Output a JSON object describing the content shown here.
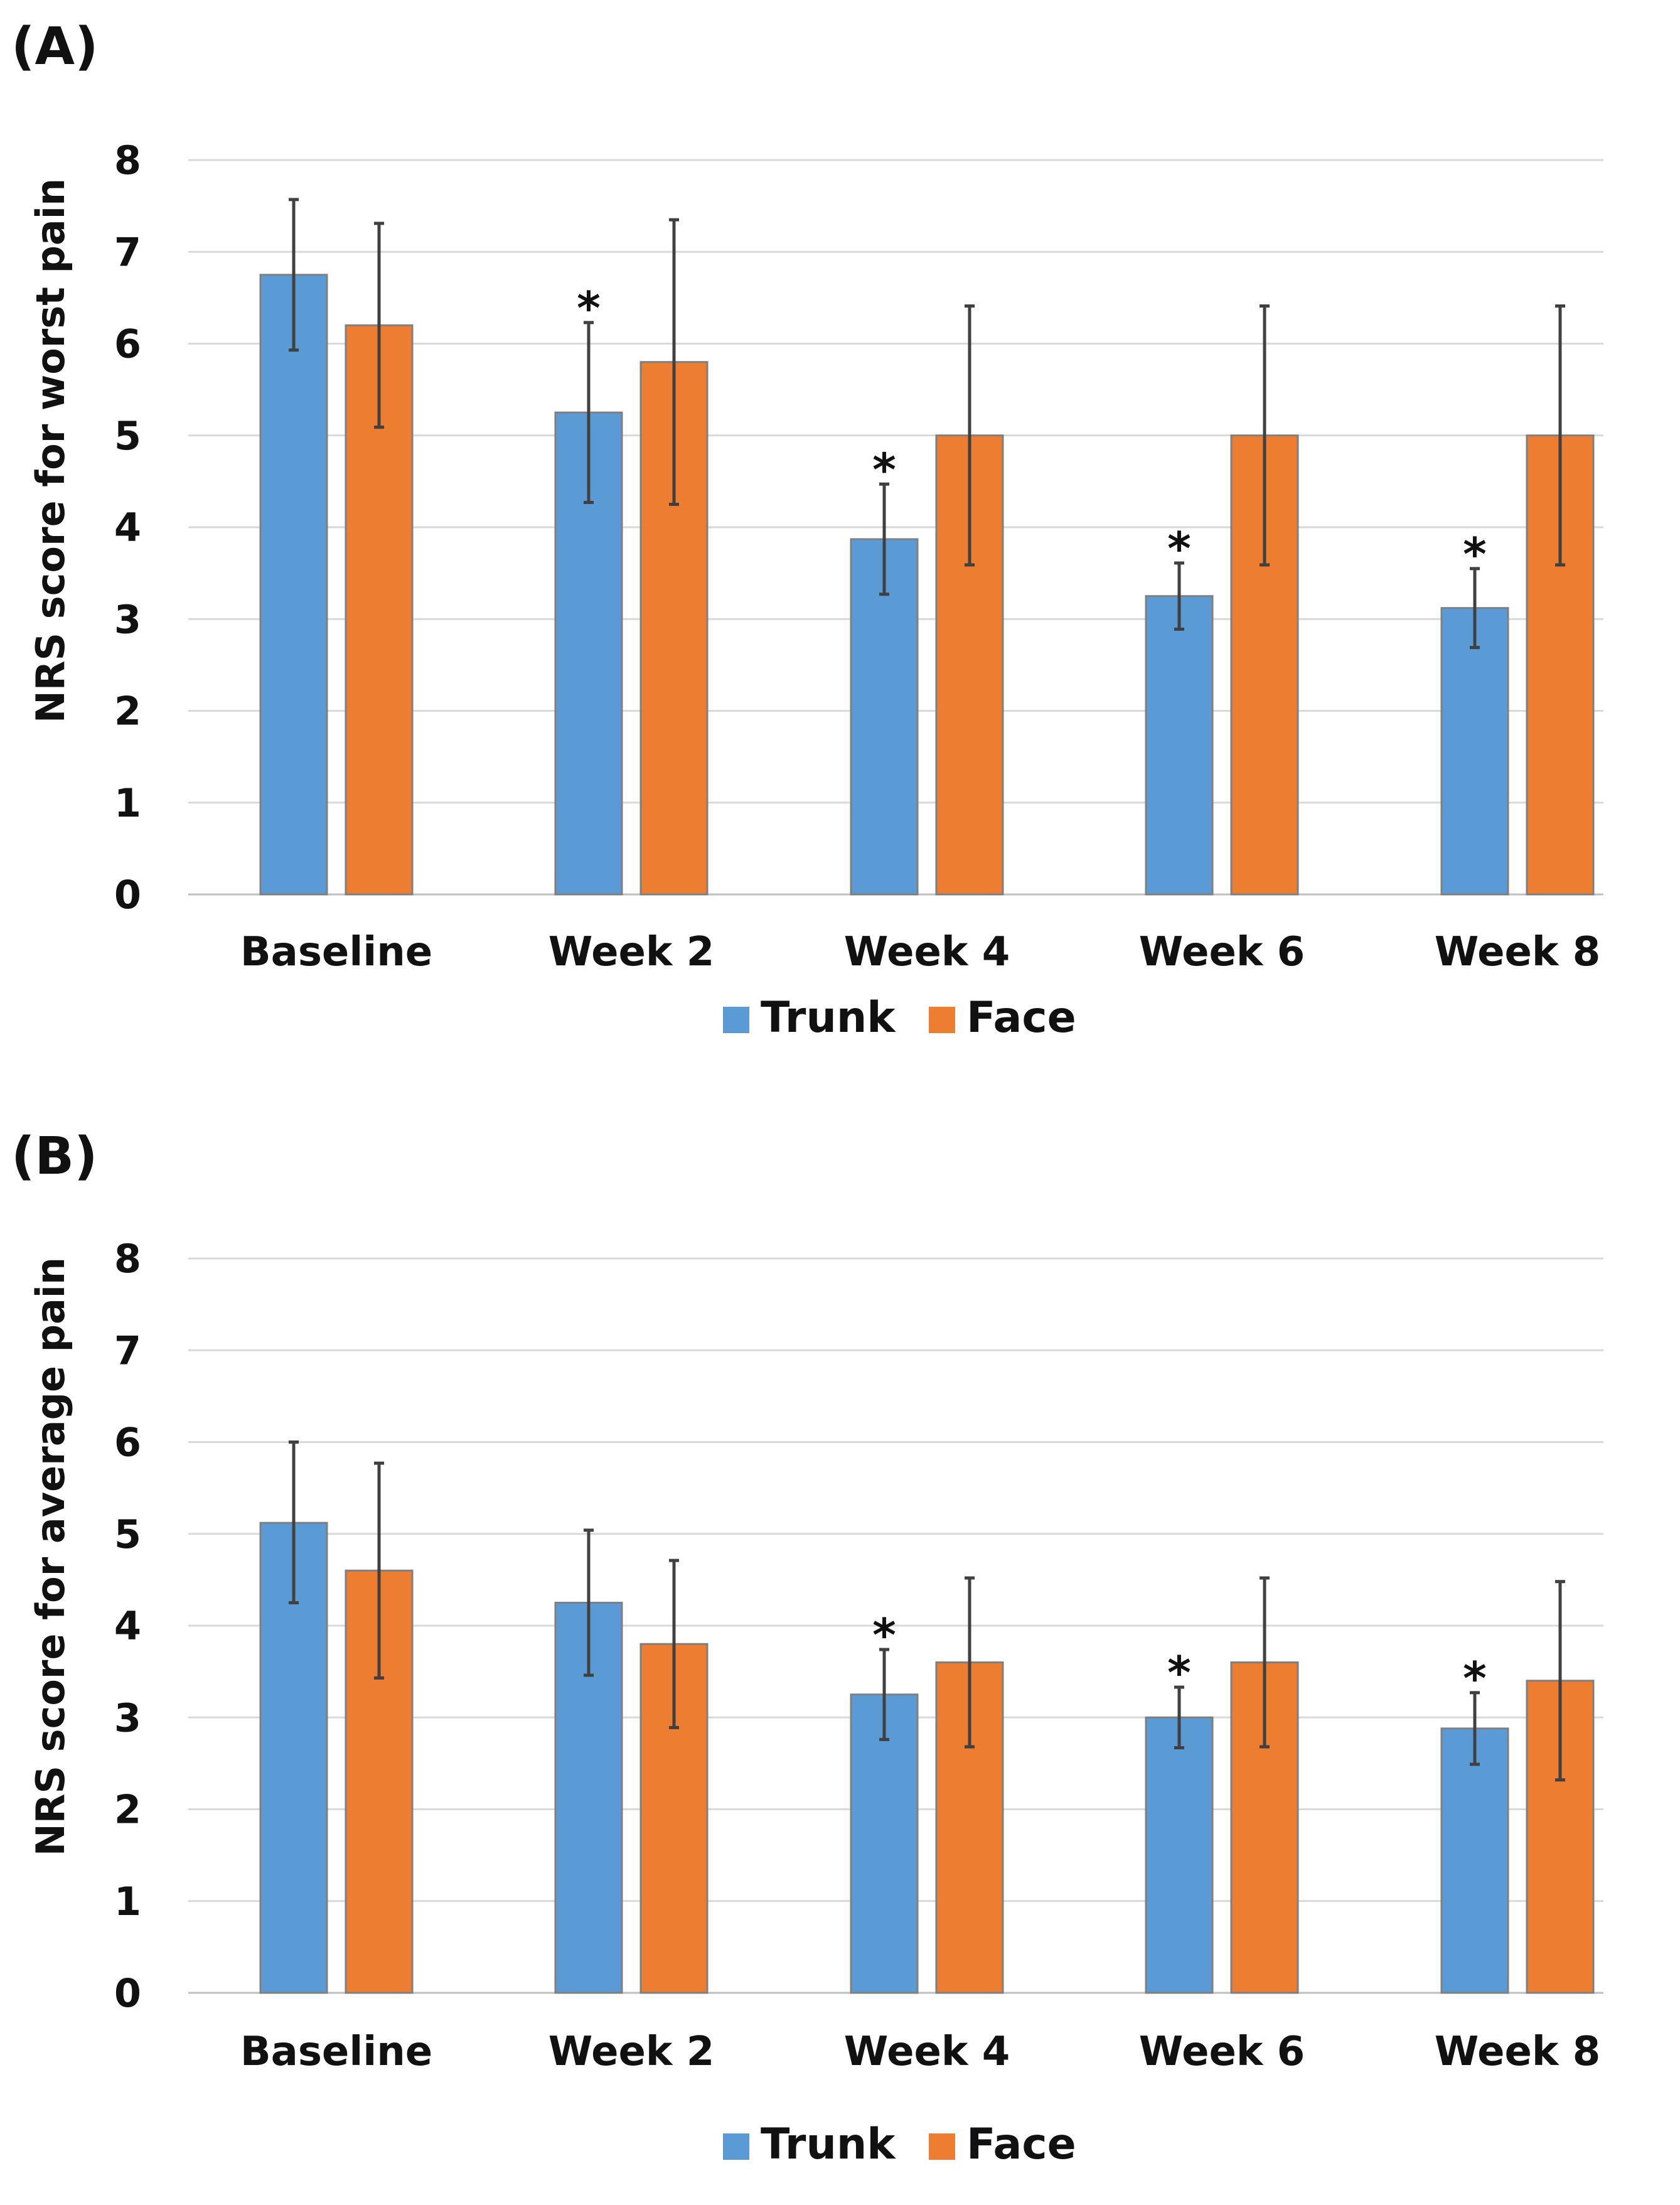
{
  "chart_data": [
    {
      "type": "bar",
      "panel_label": "(A)",
      "ylabel": "NRS score for worst pain",
      "xlabel": "",
      "ylim": [
        0,
        8
      ],
      "yticks": [
        "0",
        "1",
        "2",
        "3",
        "4",
        "5",
        "6",
        "7",
        "8"
      ],
      "categories": [
        "Baseline",
        "Week 2",
        "Week 4",
        "Week 6",
        "Week 8"
      ],
      "series": [
        {
          "name": "Trunk",
          "color": "#5b9bd5",
          "values": [
            6.75,
            5.25,
            3.87,
            3.25,
            3.12
          ],
          "err_low": [
            5.93,
            4.27,
            3.27,
            2.89,
            2.69
          ],
          "err_high": [
            7.57,
            6.23,
            4.47,
            3.61,
            3.55
          ]
        },
        {
          "name": "Face",
          "color": "#ed7d31",
          "values": [
            6.2,
            5.8,
            5.0,
            5.0,
            5.0
          ],
          "err_low": [
            5.09,
            4.25,
            3.59,
            3.59,
            3.59
          ],
          "err_high": [
            7.31,
            7.35,
            6.41,
            6.41,
            6.41
          ]
        }
      ],
      "annotations": [
        {
          "category": "Week 2",
          "series": "Trunk",
          "text": "*"
        },
        {
          "category": "Week 4",
          "series": "Trunk",
          "text": "*"
        },
        {
          "category": "Week 6",
          "series": "Trunk",
          "text": "*"
        },
        {
          "category": "Week 8",
          "series": "Trunk",
          "text": "*"
        }
      ],
      "legend": [
        "Trunk",
        "Face"
      ]
    },
    {
      "type": "bar",
      "panel_label": "(B)",
      "ylabel": "NRS score for average pain",
      "xlabel": "",
      "ylim": [
        0,
        8
      ],
      "yticks": [
        "0",
        "1",
        "2",
        "3",
        "4",
        "5",
        "6",
        "7",
        "8"
      ],
      "categories": [
        "Baseline",
        "Week 2",
        "Week 4",
        "Week 6",
        "Week 8"
      ],
      "series": [
        {
          "name": "Trunk",
          "color": "#5b9bd5",
          "values": [
            5.12,
            4.25,
            3.25,
            3.0,
            2.88
          ],
          "err_low": [
            4.25,
            3.46,
            2.76,
            2.67,
            2.49
          ],
          "err_high": [
            6.0,
            5.04,
            3.74,
            3.33,
            3.27
          ]
        },
        {
          "name": "Face",
          "color": "#ed7d31",
          "values": [
            4.6,
            3.8,
            3.6,
            3.6,
            3.4
          ],
          "err_low": [
            3.43,
            2.89,
            2.68,
            2.68,
            2.32
          ],
          "err_high": [
            5.77,
            4.71,
            4.52,
            4.52,
            4.48
          ]
        }
      ],
      "annotations": [
        {
          "category": "Week 4",
          "series": "Trunk",
          "text": "*"
        },
        {
          "category": "Week 6",
          "series": "Trunk",
          "text": "*"
        },
        {
          "category": "Week 8",
          "series": "Trunk",
          "text": "*"
        }
      ],
      "legend": [
        "Trunk",
        "Face"
      ]
    }
  ]
}
